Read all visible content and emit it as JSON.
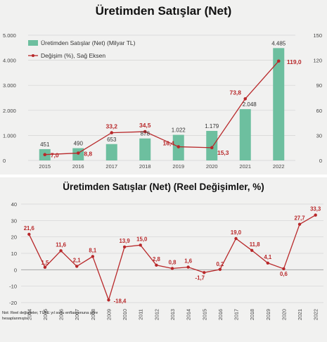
{
  "chart_data": [
    {
      "type": "bar",
      "title": "Üretimden Satışlar (Net)",
      "categories": [
        "2015",
        "2016",
        "2017",
        "2018",
        "2019",
        "2020",
        "2021",
        "2022"
      ],
      "series": [
        {
          "name": "Üretimden Satışlar (Net) (Milyar TL)",
          "type": "bar",
          "axis": "left",
          "values": [
            451,
            490,
            653,
            878,
            1022,
            1179,
            2048,
            4485
          ],
          "labels": [
            "451",
            "490",
            "653",
            "878",
            "1.022",
            "1.179",
            "2.048",
            "4.485"
          ]
        },
        {
          "name": "Değişim (%), Sağ Eksen",
          "type": "line",
          "axis": "right",
          "values": [
            7.0,
            8.8,
            33.2,
            34.5,
            16.4,
            15.3,
            73.8,
            119.0
          ],
          "labels": [
            "7,0",
            "8,8",
            "33,2",
            "34,5",
            "16,4",
            "15,3",
            "73,8",
            "119,0"
          ]
        }
      ],
      "ylim_left": [
        0,
        5000
      ],
      "yticks_left": [
        "0",
        "1.000",
        "2.000",
        "3.000",
        "4.000",
        "5.000"
      ],
      "ylim_right": [
        0,
        150
      ],
      "yticks_right": [
        "0",
        "30",
        "60",
        "90",
        "120",
        "150"
      ],
      "legend_position": "top-left",
      "colors": {
        "bar": "#6dbf9f",
        "line": "#b8282a",
        "bar_label": "#333333"
      }
    },
    {
      "type": "line",
      "title": "Üretimden Satışlar (Net) (Reel Değişimler, %)",
      "x": [
        "2004",
        "2005",
        "2006",
        "2007",
        "2008",
        "2009",
        "2010",
        "2011",
        "2012",
        "2013",
        "2014",
        "2015",
        "2016",
        "2017",
        "2018",
        "2019",
        "2020",
        "2021",
        "2022"
      ],
      "values": [
        21.6,
        1.5,
        11.6,
        2.1,
        8.1,
        -18.4,
        13.9,
        15.0,
        2.8,
        0.8,
        1.6,
        -1.7,
        0.2,
        19.0,
        11.8,
        4.1,
        0.6,
        27.7,
        33.3
      ],
      "labels": [
        "21,6",
        "1,5",
        "11,6",
        "2,1",
        "8,1",
        "-18,4",
        "13,9",
        "15,0",
        "2,8",
        "0,8",
        "1,6",
        "-1,7",
        "0,2",
        "19,0",
        "11,8",
        "4,1",
        "0,6",
        "27,7",
        "33,3"
      ],
      "ylim": [
        -20,
        40
      ],
      "yticks": [
        "-20",
        "-10",
        "0",
        "10",
        "20",
        "30",
        "40"
      ],
      "colors": {
        "line": "#b8282a"
      }
    }
  ],
  "note": "Not: Reel değişimler, TÜFE yıl sonu enflasyonuna göre hesaplanmıştır."
}
